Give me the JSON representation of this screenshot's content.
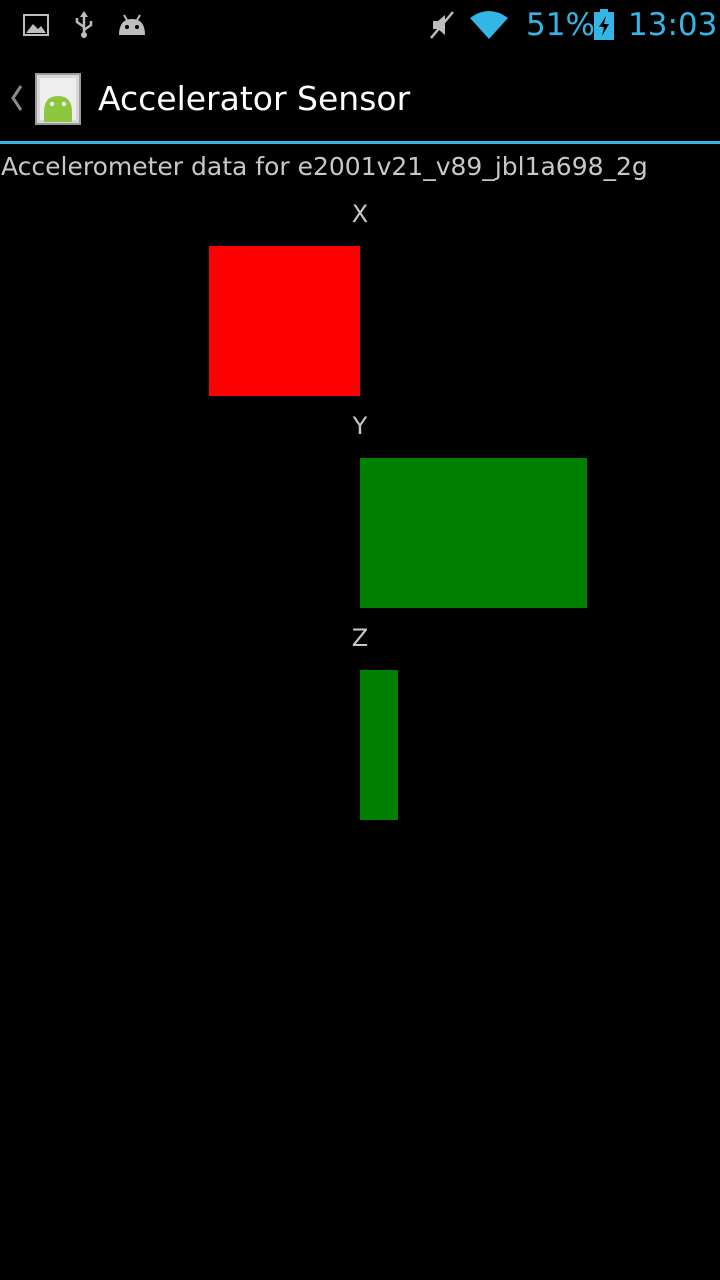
{
  "status_bar": {
    "icons_left": [
      "gallery-icon",
      "usb-icon",
      "android-debug-icon"
    ],
    "icons_right": [
      "mute-icon",
      "wifi-icon",
      "battery-charging-icon"
    ],
    "battery_percent": "51%",
    "time": "13:03",
    "accent_color": "#33b5e5"
  },
  "action_bar": {
    "title": "Accelerator Sensor",
    "icon": "android-app-icon"
  },
  "content": {
    "subtitle": "Accelerometer data for e2001v21_v89_jbl1a698_2g"
  },
  "chart_data": {
    "type": "bar",
    "orientation": "horizontal",
    "categories": [
      "X",
      "Y",
      "Z"
    ],
    "values": [
      -2.2,
      3.3,
      0.55
    ],
    "colors": {
      "negative": "#ff0000",
      "positive": "#008000"
    }
  }
}
